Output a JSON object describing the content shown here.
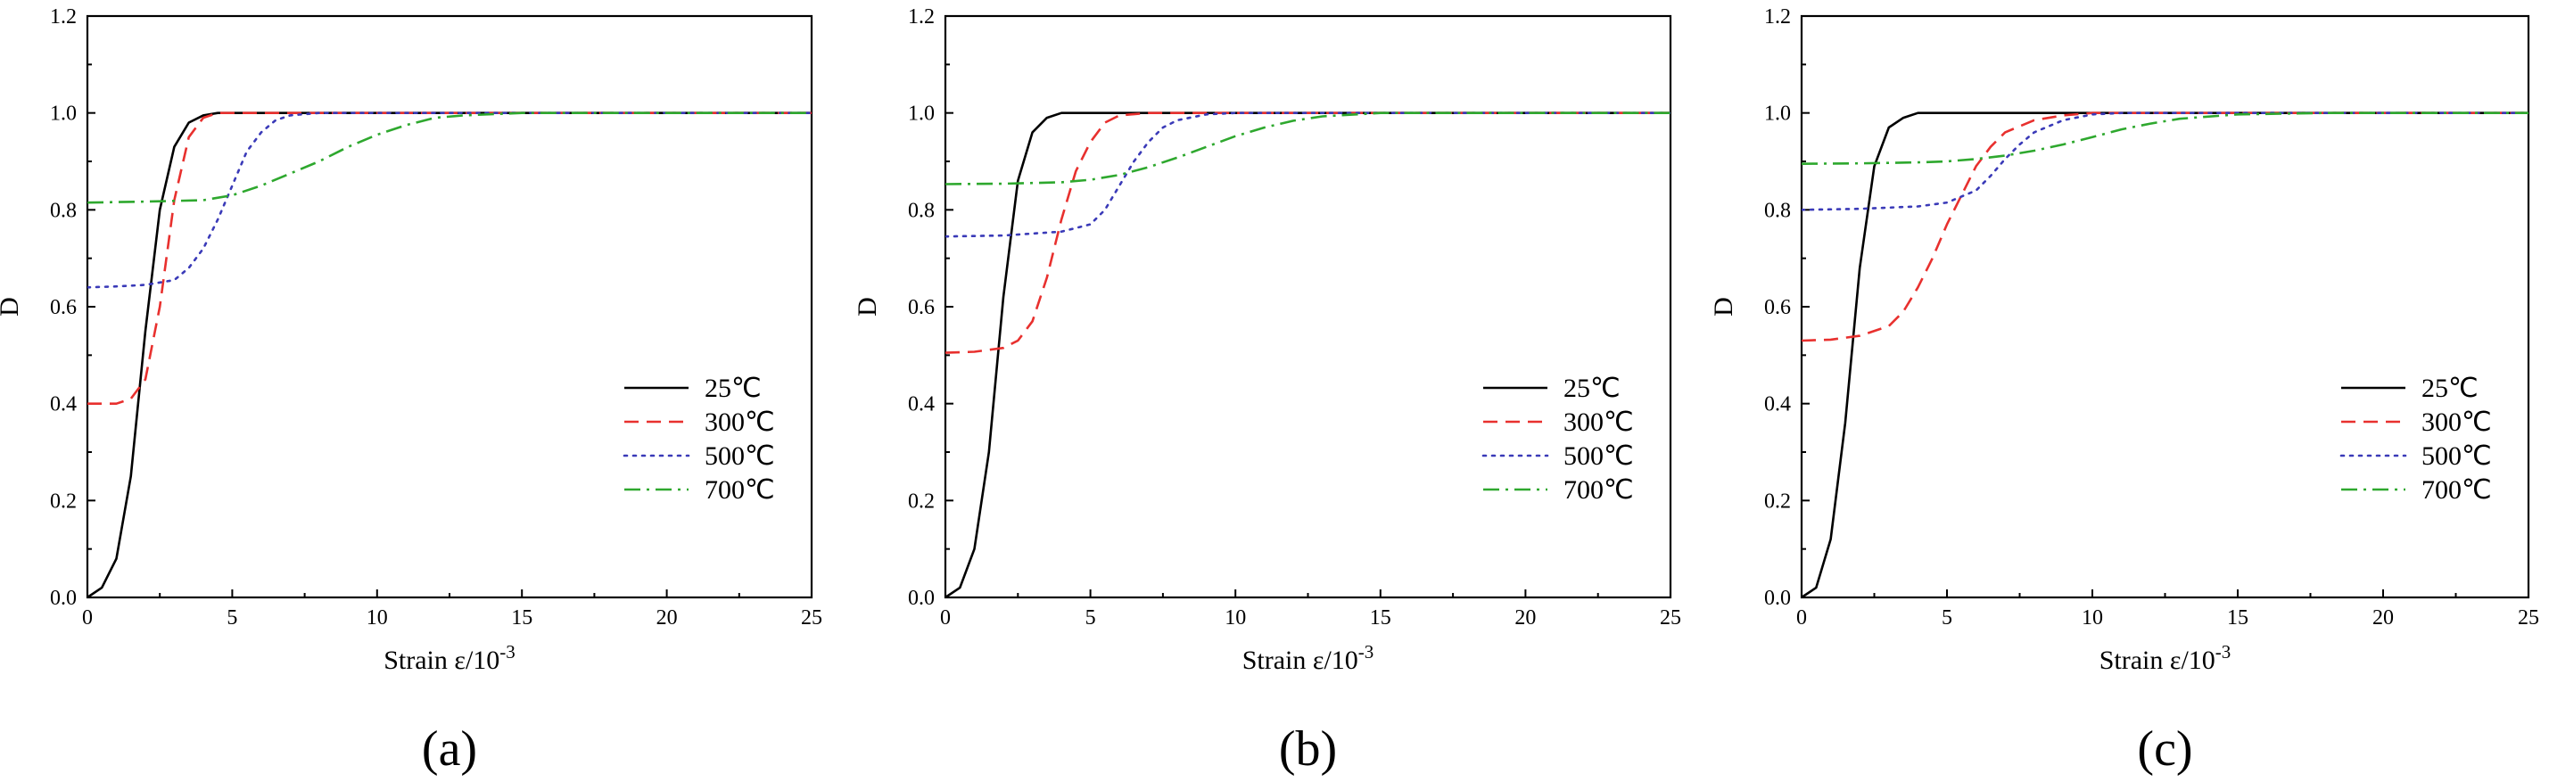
{
  "chart_data": [
    {
      "type": "line",
      "panel_label": "(a)",
      "xlabel": "Strain ε/10",
      "xlabel_exponent": "-3",
      "ylabel": "D",
      "xlim": [
        0,
        25
      ],
      "ylim": [
        0,
        1.2
      ],
      "xticks": [
        "0",
        "5",
        "10",
        "15",
        "20",
        "25"
      ],
      "yticks": [
        "0.0",
        "0.2",
        "0.4",
        "0.6",
        "0.8",
        "1.0",
        "1.2"
      ],
      "legend": "lower-right",
      "series": [
        {
          "name": "25℃",
          "color": "#000000",
          "dash": "solid",
          "x": [
            0,
            0.5,
            1,
            1.5,
            2,
            2.5,
            3,
            3.5,
            4,
            4.5,
            5,
            25
          ],
          "y": [
            0,
            0.02,
            0.08,
            0.25,
            0.55,
            0.8,
            0.93,
            0.98,
            0.995,
            1.0,
            1.0,
            1.0
          ]
        },
        {
          "name": "300℃",
          "color": "#e8302e",
          "dash": "dashed",
          "x": [
            0,
            1,
            1.5,
            2,
            2.5,
            3,
            3.5,
            4,
            4.5,
            5,
            25
          ],
          "y": [
            0.4,
            0.4,
            0.41,
            0.45,
            0.6,
            0.82,
            0.95,
            0.99,
            1.0,
            1.0,
            1.0
          ]
        },
        {
          "name": "500℃",
          "color": "#3a3ab8",
          "dash": "dotted",
          "x": [
            0,
            1,
            2,
            3,
            3.5,
            4,
            4.5,
            5,
            5.5,
            6,
            6.5,
            7,
            8,
            25
          ],
          "y": [
            0.64,
            0.642,
            0.645,
            0.655,
            0.68,
            0.72,
            0.78,
            0.85,
            0.92,
            0.96,
            0.985,
            0.995,
            1.0,
            1.0
          ]
        },
        {
          "name": "700℃",
          "color": "#2ea82e",
          "dash": "dashdot",
          "x": [
            0,
            2,
            4,
            5,
            6,
            7,
            8,
            9,
            10,
            11,
            12,
            13,
            15,
            18,
            25
          ],
          "y": [
            0.815,
            0.817,
            0.82,
            0.83,
            0.85,
            0.875,
            0.9,
            0.93,
            0.955,
            0.975,
            0.99,
            0.995,
            1.0,
            1.0,
            1.0
          ]
        }
      ]
    },
    {
      "type": "line",
      "panel_label": "(b)",
      "xlabel": "Strain ε/10",
      "xlabel_exponent": "-3",
      "ylabel": "D",
      "xlim": [
        0,
        25
      ],
      "ylim": [
        0,
        1.2
      ],
      "xticks": [
        "0",
        "5",
        "10",
        "15",
        "20",
        "25"
      ],
      "yticks": [
        "0.0",
        "0.2",
        "0.4",
        "0.6",
        "0.8",
        "1.0",
        "1.2"
      ],
      "legend": "lower-right",
      "series": [
        {
          "name": "25℃",
          "color": "#000000",
          "dash": "solid",
          "x": [
            0,
            0.5,
            1,
            1.5,
            2,
            2.5,
            3,
            3.5,
            4,
            4.5,
            5,
            25
          ],
          "y": [
            0,
            0.02,
            0.1,
            0.3,
            0.62,
            0.86,
            0.96,
            0.99,
            1.0,
            1.0,
            1.0,
            1.0
          ]
        },
        {
          "name": "300℃",
          "color": "#e8302e",
          "dash": "dashed",
          "x": [
            0,
            1,
            2,
            2.5,
            3,
            3.5,
            4,
            4.5,
            5,
            5.5,
            6,
            7,
            25
          ],
          "y": [
            0.505,
            0.507,
            0.515,
            0.53,
            0.57,
            0.66,
            0.78,
            0.88,
            0.94,
            0.98,
            0.995,
            1.0,
            1.0
          ]
        },
        {
          "name": "500℃",
          "color": "#3a3ab8",
          "dash": "dotted",
          "x": [
            0,
            2,
            4,
            5,
            5.5,
            6,
            6.5,
            7,
            7.5,
            8,
            9,
            10,
            25
          ],
          "y": [
            0.745,
            0.747,
            0.755,
            0.77,
            0.8,
            0.85,
            0.9,
            0.94,
            0.97,
            0.985,
            0.997,
            1.0,
            1.0
          ]
        },
        {
          "name": "700℃",
          "color": "#2ea82e",
          "dash": "dashdot",
          "x": [
            0,
            2,
            4,
            5,
            6,
            7,
            8,
            9,
            10,
            11,
            12,
            13,
            15,
            18,
            25
          ],
          "y": [
            0.853,
            0.854,
            0.857,
            0.862,
            0.872,
            0.888,
            0.908,
            0.93,
            0.952,
            0.97,
            0.984,
            0.993,
            1.0,
            1.0,
            1.0
          ]
        }
      ]
    },
    {
      "type": "line",
      "panel_label": "(c)",
      "xlabel": "Strain ε/10",
      "xlabel_exponent": "-3",
      "ylabel": "D",
      "xlim": [
        0,
        25
      ],
      "ylim": [
        0,
        1.2
      ],
      "xticks": [
        "0",
        "5",
        "10",
        "15",
        "20",
        "25"
      ],
      "yticks": [
        "0.0",
        "0.2",
        "0.4",
        "0.6",
        "0.8",
        "1.0",
        "1.2"
      ],
      "legend": "lower-right",
      "series": [
        {
          "name": "25℃",
          "color": "#000000",
          "dash": "solid",
          "x": [
            0,
            0.5,
            1,
            1.5,
            2,
            2.5,
            3,
            3.5,
            4,
            4.5,
            5,
            25
          ],
          "y": [
            0,
            0.02,
            0.12,
            0.36,
            0.68,
            0.89,
            0.97,
            0.99,
            1.0,
            1.0,
            1.0,
            1.0
          ]
        },
        {
          "name": "300℃",
          "color": "#e8302e",
          "dash": "dashed",
          "x": [
            0,
            1,
            2,
            3,
            3.5,
            4,
            4.5,
            5,
            5.5,
            6,
            6.5,
            7,
            8,
            9,
            10,
            25
          ],
          "y": [
            0.53,
            0.532,
            0.54,
            0.56,
            0.59,
            0.64,
            0.7,
            0.77,
            0.83,
            0.89,
            0.93,
            0.96,
            0.985,
            0.995,
            1.0,
            1.0
          ]
        },
        {
          "name": "500℃",
          "color": "#3a3ab8",
          "dash": "dotted",
          "x": [
            0,
            2,
            4,
            5,
            6,
            6.5,
            7,
            7.5,
            8,
            9,
            10,
            11,
            25
          ],
          "y": [
            0.8,
            0.802,
            0.807,
            0.815,
            0.84,
            0.87,
            0.905,
            0.935,
            0.96,
            0.985,
            0.997,
            1.0,
            1.0
          ]
        },
        {
          "name": "700℃",
          "color": "#2ea82e",
          "dash": "dashdot",
          "x": [
            0,
            2,
            4,
            5,
            6,
            7,
            8,
            9,
            10,
            11,
            12,
            13,
            15,
            18,
            25
          ],
          "y": [
            0.895,
            0.896,
            0.898,
            0.9,
            0.905,
            0.912,
            0.922,
            0.935,
            0.95,
            0.966,
            0.978,
            0.988,
            0.997,
            1.0,
            1.0
          ]
        }
      ]
    }
  ]
}
